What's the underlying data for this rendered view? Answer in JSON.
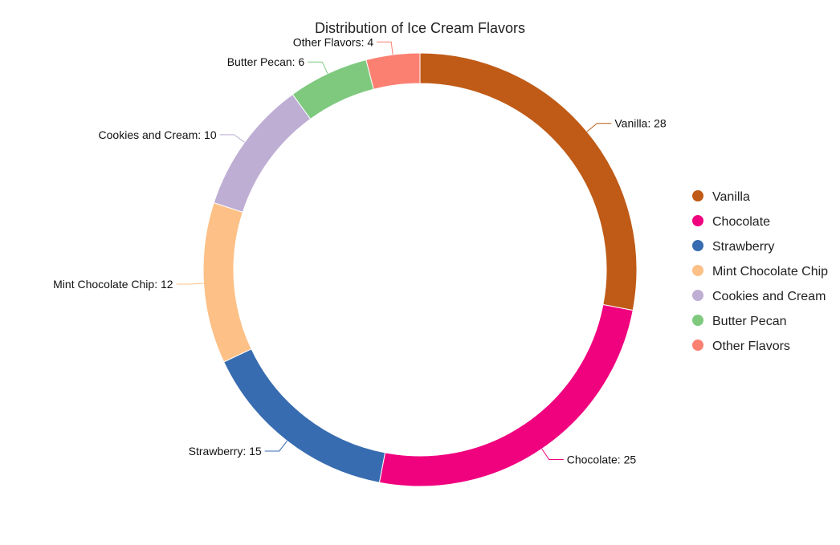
{
  "chart_data": {
    "type": "pie",
    "title": "Distribution of Ice Cream Flavors",
    "categories": [
      "Vanilla",
      "Chocolate",
      "Strawberry",
      "Mint Chocolate Chip",
      "Cookies and Cream",
      "Butter Pecan",
      "Other Flavors"
    ],
    "values": [
      28,
      25,
      15,
      12,
      10,
      6,
      4
    ],
    "colors": [
      "#bf5b17",
      "#f0027f",
      "#386cb0",
      "#fdc086",
      "#beaed4",
      "#7fc97f",
      "#fb8072"
    ],
    "donut": true,
    "legend_position": "right"
  }
}
